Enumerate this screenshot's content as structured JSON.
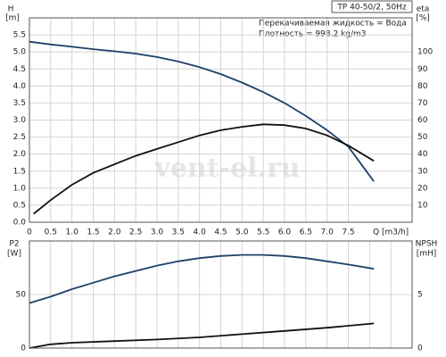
{
  "chart_data": [
    {
      "type": "line",
      "title": "TP 40-50/2, 50Hz",
      "annotations": [
        "Перекачиваемая жидкость = Вода",
        "Плотность = 998.2 kg/m3"
      ],
      "watermark": "vent-el.ru",
      "ylabel": "H",
      "yunit": "[m]",
      "y2label": "eta",
      "y2unit": "[%]",
      "xlabel": "Q [m3/h]",
      "xlim": [
        0,
        9
      ],
      "ylim": [
        0,
        6
      ],
      "y2lim": [
        0,
        120
      ],
      "xticks": [
        0,
        0.5,
        {
          "value": 1,
          "label": "1.0"
        },
        1.5,
        {
          "value": 2,
          "label": "2.0"
        },
        2.5,
        {
          "value": 3,
          "label": "3.0"
        },
        3.5,
        {
          "value": 4,
          "label": "4.0"
        },
        4.5,
        {
          "value": 5,
          "label": "5.0"
        },
        5.5,
        {
          "value": 6,
          "label": "6.0"
        },
        6.5,
        {
          "value": 7,
          "label": "7.0"
        },
        7.5
      ],
      "yticks": [
        {
          "value": 0,
          "label": "0.0"
        },
        0.5,
        {
          "value": 1,
          "label": "1.0"
        },
        1.5,
        {
          "value": 2,
          "label": "2.0"
        },
        2.5,
        {
          "value": 3,
          "label": "3.0"
        },
        3.5,
        {
          "value": 4,
          "label": "4.0"
        },
        4.5,
        {
          "value": 5,
          "label": "5.0"
        },
        5.5
      ],
      "y2ticks": [
        10,
        20,
        30,
        40,
        50,
        60,
        70,
        80,
        90,
        100
      ],
      "grid": true,
      "series": [
        {
          "color": "#1f4068",
          "axis": "y",
          "x": [
            0,
            0.5,
            1,
            1.5,
            2,
            2.5,
            3,
            3.5,
            4,
            4.5,
            5,
            5.5,
            6,
            6.5,
            7,
            7.5,
            8.1
          ],
          "values": [
            5.3,
            5.22,
            5.15,
            5.08,
            5.02,
            4.95,
            4.85,
            4.72,
            4.55,
            4.35,
            4.1,
            3.82,
            3.5,
            3.12,
            2.7,
            2.22,
            1.2
          ]
        },
        {
          "color": "#111111",
          "axis": "y2",
          "x": [
            0.1,
            0.5,
            1,
            1.5,
            2,
            2.5,
            3,
            3.5,
            4,
            4.5,
            5,
            5.5,
            6,
            6.5,
            7,
            7.5,
            8.1
          ],
          "values": [
            5,
            13,
            22,
            29,
            34,
            39,
            43,
            47,
            51,
            54,
            56,
            57.5,
            57,
            55,
            51,
            45,
            36
          ]
        }
      ]
    },
    {
      "type": "line",
      "ylabel": "P2",
      "yunit": "[W]",
      "y2label": "NPSH",
      "y2unit": "[mH]",
      "xlim": [
        0,
        9
      ],
      "ylim": [
        0,
        100
      ],
      "y2lim": [
        0,
        10
      ],
      "xticks": [
        0,
        0.5,
        1,
        1.5,
        2,
        2.5,
        3,
        3.5,
        4,
        4.5,
        5,
        5.5,
        6,
        6.5,
        7,
        7.5,
        8,
        8.5
      ],
      "yticks": [
        0,
        50
      ],
      "y2ticks": [
        0,
        5
      ],
      "grid": true,
      "series": [
        {
          "color": "#1f4068",
          "axis": "y",
          "x": [
            0,
            0.5,
            1,
            1.5,
            2,
            2.5,
            3,
            3.5,
            4,
            4.5,
            5,
            5.5,
            6,
            6.5,
            7,
            7.5,
            8.1
          ],
          "values": [
            42,
            48,
            55,
            61,
            67,
            72,
            77,
            81,
            84,
            86,
            87,
            87,
            86,
            84,
            81,
            78,
            74
          ]
        },
        {
          "color": "#111111",
          "axis": "y2",
          "x": [
            0,
            0.5,
            1,
            2,
            3,
            4,
            5,
            6,
            7,
            8.1
          ],
          "values": [
            0,
            0.35,
            0.5,
            0.65,
            0.8,
            1.0,
            1.3,
            1.6,
            1.9,
            2.3
          ]
        }
      ]
    }
  ]
}
